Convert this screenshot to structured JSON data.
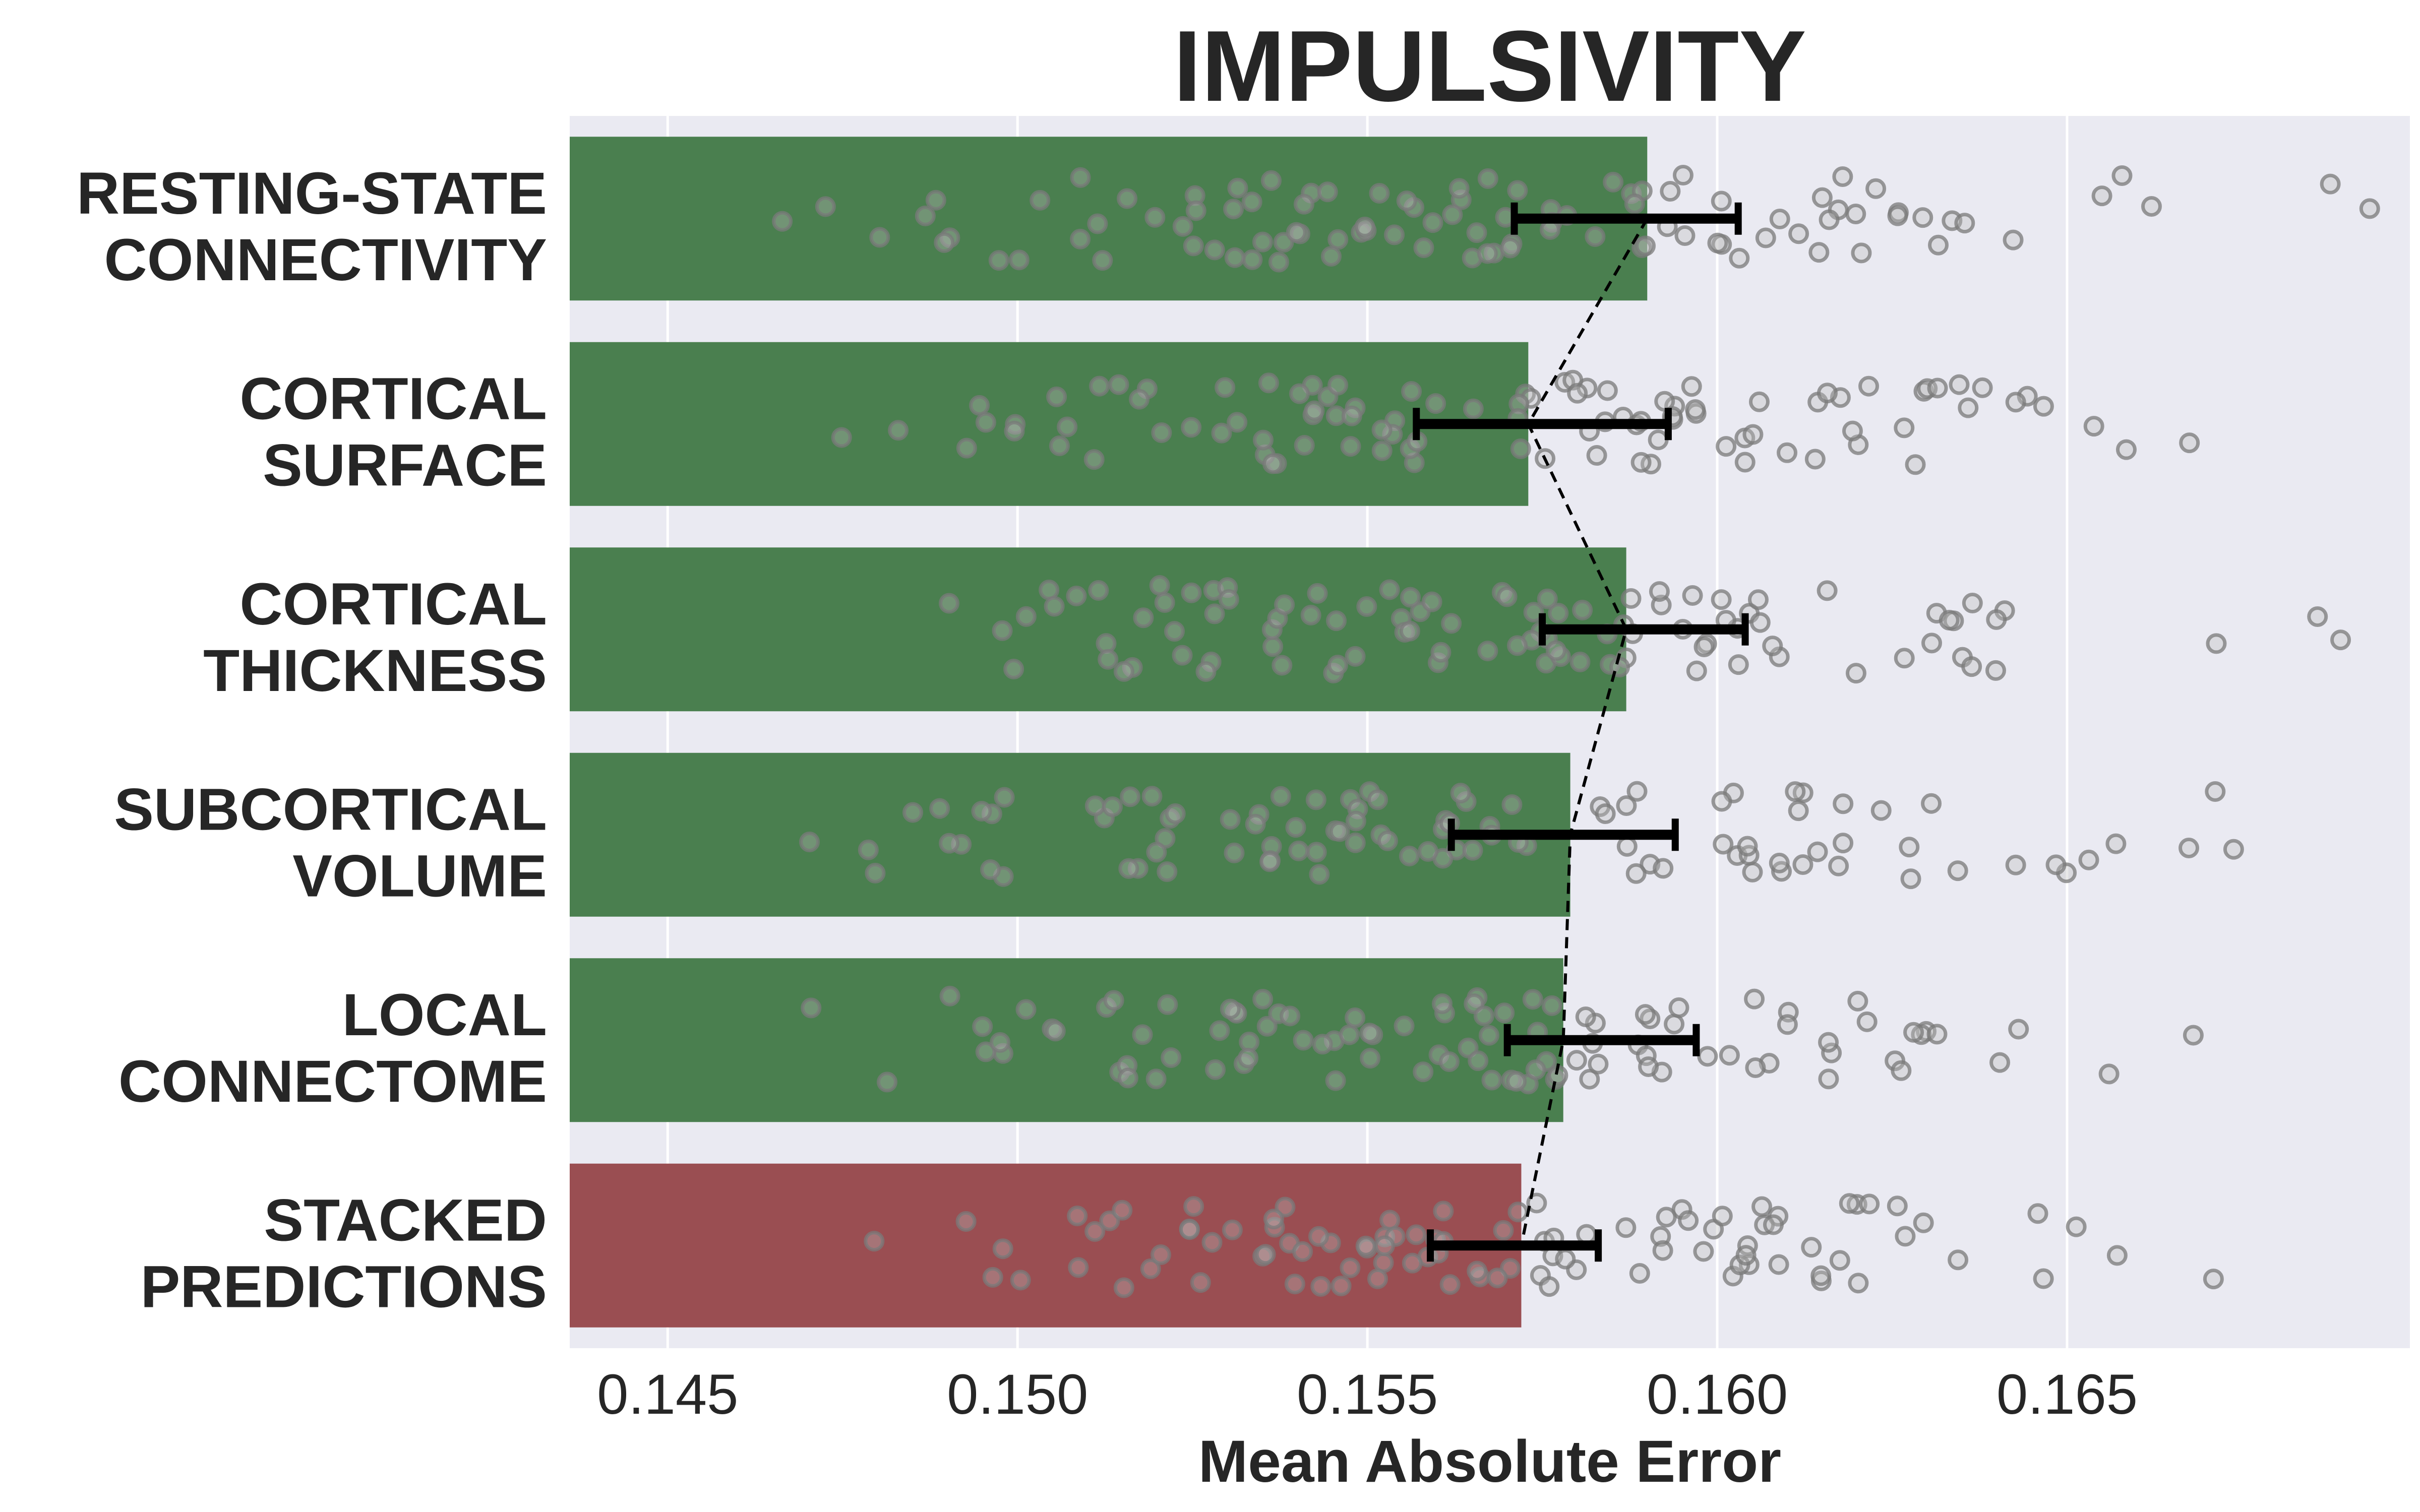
{
  "chart_data": {
    "type": "bar",
    "orientation": "horizontal",
    "title": "IMPULSIVITY",
    "xlabel": "Mean Absolute Error",
    "ylabel": "",
    "xlim": [
      0.1436,
      0.1699
    ],
    "xticks": [
      0.145,
      0.15,
      0.155,
      0.16,
      0.165
    ],
    "xtick_labels": [
      "0.145",
      "0.150",
      "0.155",
      "0.160",
      "0.165"
    ],
    "grid": true,
    "categories": [
      {
        "line1": "RESTING-STATE",
        "line2": "CONNECTIVITY"
      },
      {
        "line1": "CORTICAL",
        "line2": "SURFACE"
      },
      {
        "line1": "CORTICAL",
        "line2": "THICKNESS"
      },
      {
        "line1": "SUBCORTICAL",
        "line2": "VOLUME"
      },
      {
        "line1": "LOCAL",
        "line2": "CONNECTOME"
      },
      {
        "line1": "STACKED",
        "line2": "PREDICTIONS"
      }
    ],
    "values": [
      0.159,
      0.1573,
      0.1587,
      0.1579,
      0.1578,
      0.1572
    ],
    "error_low": [
      0.1571,
      0.1557,
      0.1575,
      0.1562,
      0.157,
      0.1559
    ],
    "error_high": [
      0.1603,
      0.1593,
      0.1604,
      0.1594,
      0.1597,
      0.1583
    ],
    "scatter_range": [
      0.1436,
      0.1699
    ],
    "points_per_category": 100,
    "colors": {
      "bar": "#4a7f4f",
      "stacked_bar": "#9a4e52",
      "background": "#eaeaf2",
      "grid": "#ffffff",
      "point_edge": "#7a7a7a",
      "error_bar": "#000000",
      "connector": "#000000"
    }
  }
}
